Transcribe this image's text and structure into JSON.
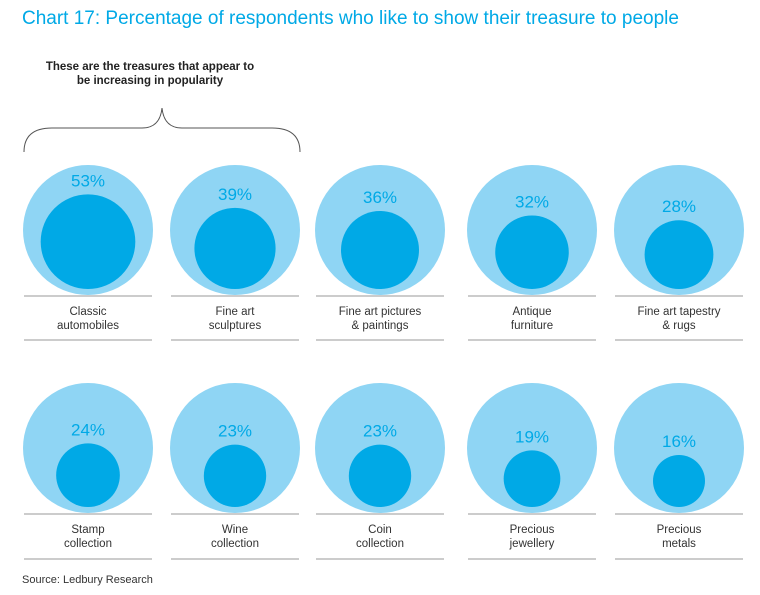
{
  "title": "Chart 17: Percentage of respondents who like to show their treasure to people",
  "annotation": "These are the treasures that appear to be increasing in popularity",
  "source": "Source: Ledbury Research",
  "colors": {
    "outer": "#8fd5f4",
    "inner": "#00a9e6",
    "text_accent": "#00a9e6",
    "rule": "#999999"
  },
  "chart_data": {
    "type": "bubble-area",
    "unit": "%",
    "max_value": 100,
    "items": [
      {
        "label_lines": [
          "Classic",
          "automobiles"
        ],
        "value": 53,
        "value_label": "53%"
      },
      {
        "label_lines": [
          "Fine art",
          "sculptures"
        ],
        "value": 39,
        "value_label": "39%"
      },
      {
        "label_lines": [
          "Fine art pictures",
          "& paintings"
        ],
        "value": 36,
        "value_label": "36%"
      },
      {
        "label_lines": [
          "Antique",
          "furniture"
        ],
        "value": 32,
        "value_label": "32%"
      },
      {
        "label_lines": [
          "Fine art tapestry",
          "& rugs"
        ],
        "value": 28,
        "value_label": "28%"
      },
      {
        "label_lines": [
          "Stamp",
          "collection"
        ],
        "value": 24,
        "value_label": "24%"
      },
      {
        "label_lines": [
          "Wine",
          "collection"
        ],
        "value": 23,
        "value_label": "23%"
      },
      {
        "label_lines": [
          "Coin",
          "collection"
        ],
        "value": 23,
        "value_label": "23%"
      },
      {
        "label_lines": [
          "Precious",
          "jewellery"
        ],
        "value": 19,
        "value_label": "19%"
      },
      {
        "label_lines": [
          "Precious",
          "metals"
        ],
        "value": 16,
        "value_label": "16%"
      }
    ]
  }
}
